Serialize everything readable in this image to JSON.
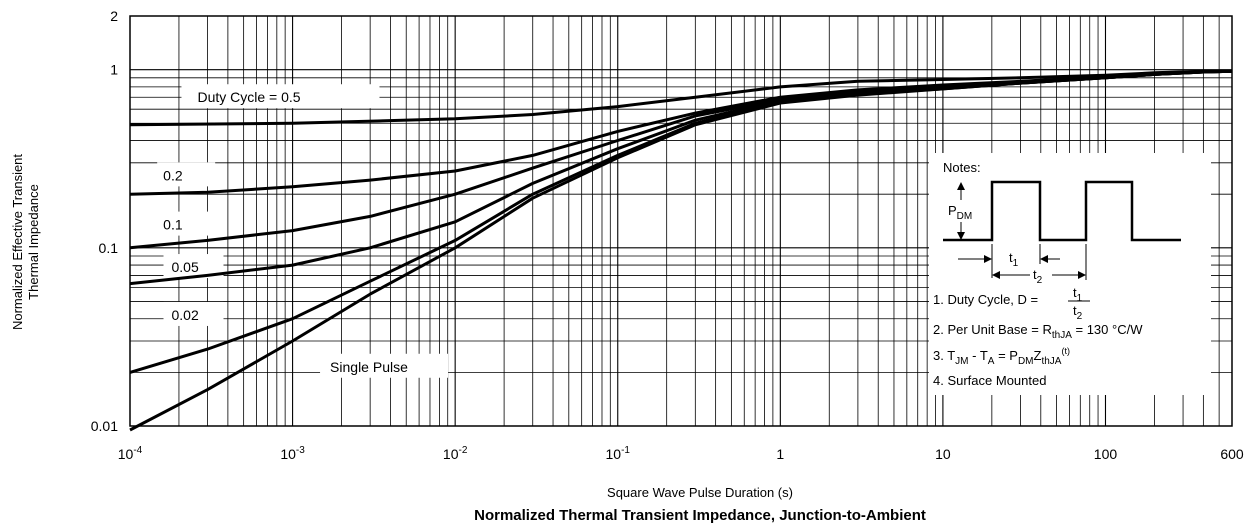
{
  "chart_data": {
    "type": "line",
    "title": "Normalized Thermal Transient Impedance, Junction-to-Ambient",
    "xlabel": "Square Wave Pulse Duration (s)",
    "ylabel_line1": "Normalized Effective Transient",
    "ylabel_line2": "Thermal Impedance",
    "x_scale": "log",
    "y_scale": "log",
    "xlim": [
      0.0001,
      600
    ],
    "ylim": [
      0.01,
      2
    ],
    "grid": true,
    "x_ticks": [
      {
        "value": 0.0001,
        "base": "10",
        "exp": "-4"
      },
      {
        "value": 0.001,
        "base": "10",
        "exp": "-3"
      },
      {
        "value": 0.01,
        "base": "10",
        "exp": "-2"
      },
      {
        "value": 0.1,
        "base": "10",
        "exp": "-1"
      },
      {
        "value": 1,
        "base": "1",
        "exp": ""
      },
      {
        "value": 10,
        "base": "10",
        "exp": ""
      },
      {
        "value": 100,
        "base": "100",
        "exp": ""
      },
      {
        "value": 600,
        "base": "600",
        "exp": ""
      }
    ],
    "y_ticks": [
      {
        "value": 0.01,
        "label": "0.01"
      },
      {
        "value": 0.1,
        "label": "0.1"
      },
      {
        "value": 1,
        "label": "1"
      },
      {
        "value": 2,
        "label": "2"
      }
    ],
    "series": [
      {
        "name": "Duty Cycle = 0.5",
        "x": [
          0.0001,
          0.001,
          0.01,
          0.03,
          0.1,
          0.3,
          1,
          3,
          10,
          30,
          100,
          200,
          400,
          600
        ],
        "y": [
          0.49,
          0.5,
          0.53,
          0.56,
          0.62,
          0.7,
          0.8,
          0.86,
          0.88,
          0.9,
          0.93,
          0.96,
          0.98,
          0.98
        ]
      },
      {
        "name": "0.2",
        "x": [
          0.0001,
          0.0003,
          0.001,
          0.003,
          0.01,
          0.03,
          0.1,
          0.3,
          1,
          3,
          10,
          30,
          100,
          200,
          400,
          600
        ],
        "y": [
          0.2,
          0.205,
          0.22,
          0.24,
          0.27,
          0.33,
          0.45,
          0.57,
          0.7,
          0.77,
          0.82,
          0.86,
          0.91,
          0.95,
          0.98,
          0.98
        ]
      },
      {
        "name": "0.1",
        "x": [
          0.0001,
          0.0003,
          0.001,
          0.003,
          0.01,
          0.03,
          0.1,
          0.3,
          1,
          3,
          10,
          30,
          100,
          200,
          400,
          600
        ],
        "y": [
          0.1,
          0.11,
          0.125,
          0.15,
          0.2,
          0.28,
          0.4,
          0.55,
          0.68,
          0.75,
          0.8,
          0.85,
          0.9,
          0.94,
          0.97,
          0.98
        ]
      },
      {
        "name": "0.05",
        "x": [
          0.0001,
          0.0003,
          0.001,
          0.003,
          0.01,
          0.03,
          0.1,
          0.3,
          1,
          3,
          10,
          30,
          100,
          200,
          400,
          600
        ],
        "y": [
          0.063,
          0.07,
          0.08,
          0.1,
          0.14,
          0.23,
          0.36,
          0.52,
          0.67,
          0.74,
          0.79,
          0.84,
          0.9,
          0.94,
          0.97,
          0.98
        ]
      },
      {
        "name": "0.02",
        "x": [
          0.0001,
          0.0003,
          0.001,
          0.003,
          0.01,
          0.03,
          0.1,
          0.3,
          1,
          3,
          10,
          30,
          100,
          200,
          400,
          600
        ],
        "y": [
          0.02,
          0.027,
          0.04,
          0.065,
          0.11,
          0.2,
          0.33,
          0.5,
          0.66,
          0.73,
          0.78,
          0.84,
          0.9,
          0.94,
          0.97,
          0.98
        ]
      },
      {
        "name": "Single Pulse",
        "x": [
          0.0001,
          0.0003,
          0.001,
          0.003,
          0.01,
          0.03,
          0.1,
          0.3,
          1,
          3,
          10,
          30,
          100,
          200,
          400,
          600
        ],
        "y": [
          0.0095,
          0.016,
          0.03,
          0.055,
          0.1,
          0.19,
          0.32,
          0.49,
          0.65,
          0.72,
          0.78,
          0.84,
          0.9,
          0.94,
          0.97,
          0.98
        ]
      }
    ],
    "curve_labels": [
      {
        "text": "Duty Cycle = 0.5",
        "at_x": 0.00026,
        "at_y": 0.7
      },
      {
        "text": "0.2",
        "at_x": 0.00016,
        "at_y": 0.255
      },
      {
        "text": "0.1",
        "at_x": 0.00016,
        "at_y": 0.135
      },
      {
        "text": "0.05",
        "at_x": 0.00018,
        "at_y": 0.078
      },
      {
        "text": "0.02",
        "at_x": 0.00018,
        "at_y": 0.042
      },
      {
        "text": "Single Pulse",
        "at_x": 0.0017,
        "at_y": 0.0215
      }
    ],
    "notes": {
      "heading": "Notes:",
      "pdm_base": "P",
      "pdm_sub": "DM",
      "t1_base": "t",
      "t1_sub": "1",
      "t2_base": "t",
      "t2_sub": "2",
      "note1_text": "1. Duty Cycle, D =",
      "note1_num_base": "t",
      "note1_num_sub": "1",
      "note1_den_base": "t",
      "note1_den_sub": "2",
      "note2_pre": "2. Per Unit Base = R",
      "note2_sub": "thJA",
      "note2_post": " = 130 °C/W",
      "note3_a": "3. T",
      "note3_a_sub": "JM",
      "note3_b": " - T",
      "note3_b_sub": "A",
      "note3_c": " = P",
      "note3_c_sub": "DM",
      "note3_d": "Z",
      "note3_d_sub": "thJA",
      "note3_d_sup": "(t)",
      "note4": "4. Surface Mounted"
    }
  }
}
